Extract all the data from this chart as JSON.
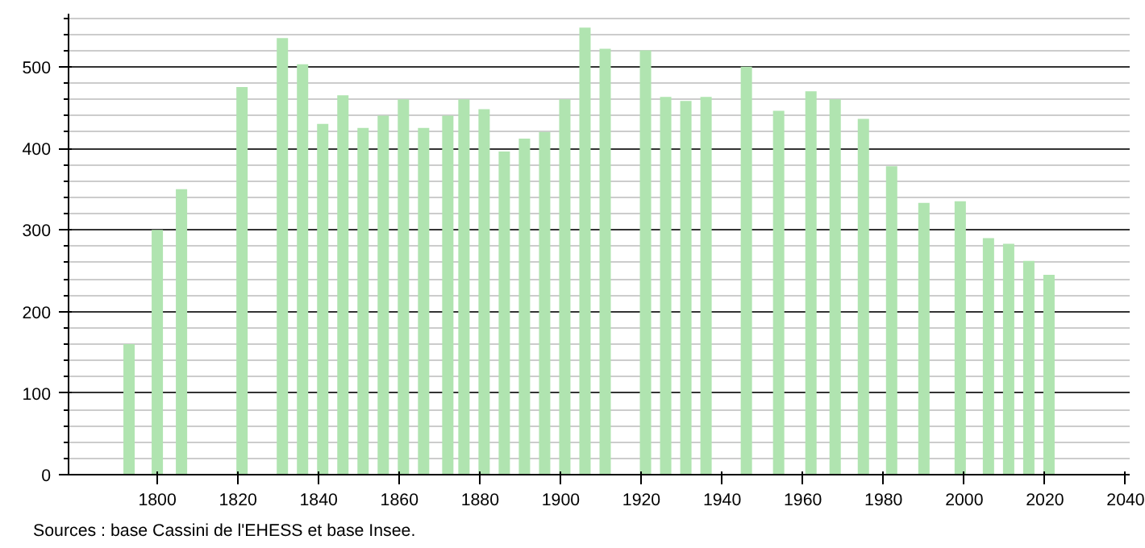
{
  "chart_data": {
    "type": "bar",
    "x": [
      1793,
      1800,
      1806,
      1821,
      1831,
      1836,
      1841,
      1846,
      1851,
      1856,
      1861,
      1866,
      1872,
      1876,
      1881,
      1886,
      1891,
      1896,
      1901,
      1906,
      1911,
      1921,
      1926,
      1931,
      1936,
      1946,
      1954,
      1962,
      1968,
      1975,
      1982,
      1990,
      1999,
      2006,
      2011,
      2016,
      2021
    ],
    "values": [
      160,
      300,
      350,
      475,
      535,
      503,
      430,
      465,
      425,
      440,
      460,
      425,
      440,
      460,
      448,
      396,
      412,
      420,
      460,
      548,
      522,
      520,
      463,
      458,
      463,
      500,
      446,
      470,
      460,
      436,
      378,
      333,
      335,
      290,
      283,
      262,
      245
    ],
    "color": "#b0e4b0",
    "xlim": [
      1778,
      2041
    ],
    "xticks": [
      1800,
      1820,
      1840,
      1860,
      1880,
      1900,
      1920,
      1940,
      1960,
      1980,
      2000,
      2020,
      2040
    ],
    "ylim": [
      0,
      565
    ],
    "yticks": [
      0,
      100,
      200,
      300,
      400,
      500
    ],
    "grid": "y",
    "annotations": [
      "Sources : base Cassini de l'EHESS et base Insee."
    ]
  }
}
